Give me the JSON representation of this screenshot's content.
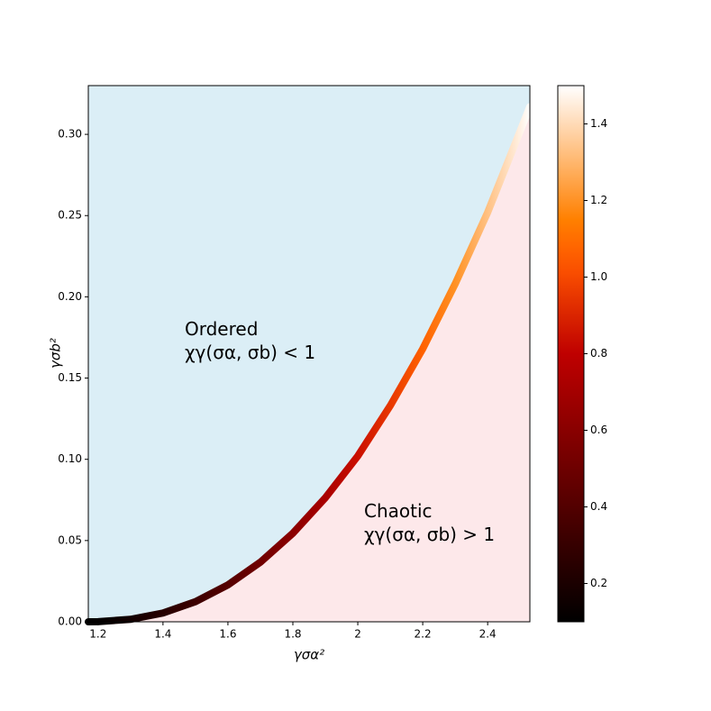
{
  "chart_data": {
    "type": "phase",
    "xlabel": "γσα²",
    "ylabel": "γσb²",
    "x": [
      1.17,
      1.2,
      1.3,
      1.4,
      1.5,
      1.6,
      1.7,
      1.8,
      1.9,
      2.0,
      2.1,
      2.2,
      2.3,
      2.4,
      2.5,
      2.53
    ],
    "y": [
      0,
      0.0001,
      0.0015,
      0.0054,
      0.0124,
      0.0227,
      0.0367,
      0.0545,
      0.0763,
      0.102,
      0.133,
      0.168,
      0.208,
      0.252,
      0.302,
      0.317
    ],
    "c": [
      0.1,
      0.11,
      0.17,
      0.24,
      0.32,
      0.41,
      0.51,
      0.61,
      0.72,
      0.84,
      0.95,
      1.07,
      1.2,
      1.33,
      1.46,
      1.5
    ],
    "xlim": [
      1.17,
      2.53
    ],
    "ylim": [
      0,
      0.33
    ],
    "xticks": [
      1.2,
      1.4,
      1.6,
      1.8,
      2.0,
      2.2,
      2.4
    ],
    "yticks": [
      {
        "value": 0,
        "label": "0.00"
      },
      {
        "value": 0.05,
        "label": "0.05"
      },
      {
        "value": 0.1,
        "label": "0.10"
      },
      {
        "value": 0.15,
        "label": "0.15"
      },
      {
        "value": 0.2,
        "label": "0.20"
      },
      {
        "value": 0.25,
        "label": "0.25"
      },
      {
        "value": 0.3,
        "label": "0.30"
      }
    ],
    "clim": [
      0.1,
      1.5
    ],
    "cticks": [
      0.2,
      0.4,
      0.6,
      0.8,
      {
        "value": 1,
        "label": "1.0"
      },
      1.2,
      1.4
    ],
    "ordered_color": "#dbeef6",
    "chaotic_color": "#fde8ea",
    "annotations": [
      {
        "lines": [
          "Ordered",
          "χγ(σα, σb) < 1"
        ]
      },
      {
        "lines": [
          "Chaotic",
          "χγ(σα, σb) > 1"
        ]
      }
    ]
  }
}
